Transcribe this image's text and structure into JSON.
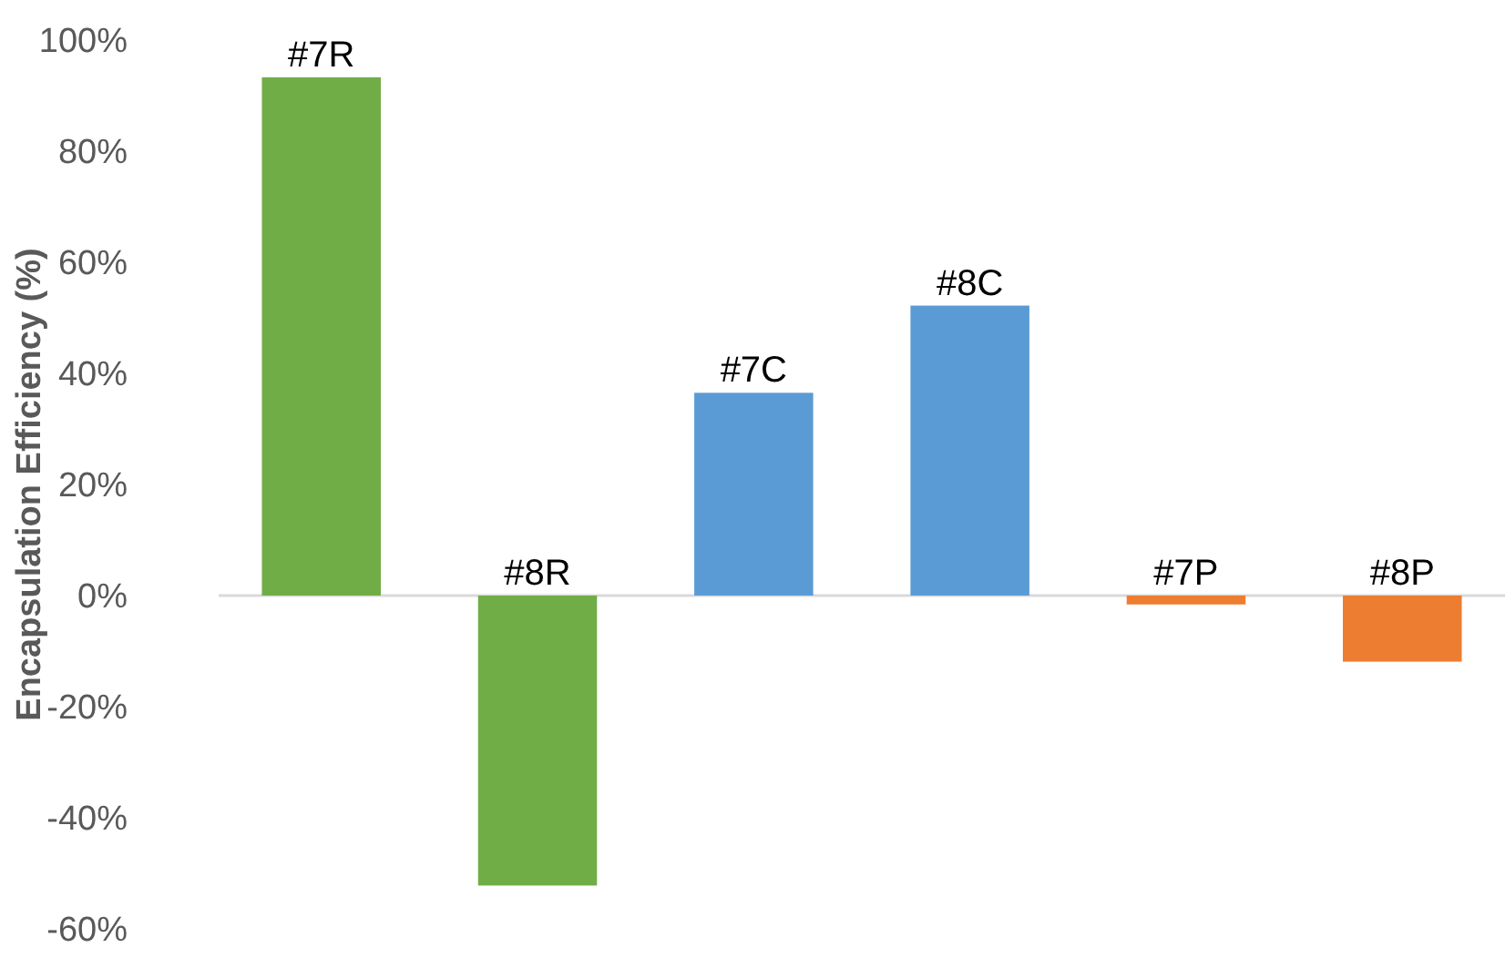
{
  "chart_data": {
    "type": "bar",
    "ylabel": "Encapsulation Efficiency (%)",
    "categories": [
      "#7R",
      "#8R",
      "#7C",
      "#8C",
      "#7P",
      "#8P"
    ],
    "values": [
      93.3,
      -52.2,
      36.5,
      52.2,
      -1.6,
      -11.9
    ],
    "colors": [
      "#70ad47",
      "#70ad47",
      "#5b9bd5",
      "#5b9bd5",
      "#ed7d31",
      "#ed7d31"
    ],
    "ylim": [
      -60,
      100
    ],
    "yticks": [
      {
        "value": -60,
        "label": "-60%"
      },
      {
        "value": -40,
        "label": "-40%"
      },
      {
        "value": -20,
        "label": "-20%"
      },
      {
        "value": 0,
        "label": "0%"
      },
      {
        "value": 20,
        "label": "20%"
      },
      {
        "value": 40,
        "label": "40%"
      },
      {
        "value": 60,
        "label": "60%"
      },
      {
        "value": 80,
        "label": "80%"
      },
      {
        "value": 100,
        "label": "100%"
      }
    ],
    "grid": false
  }
}
